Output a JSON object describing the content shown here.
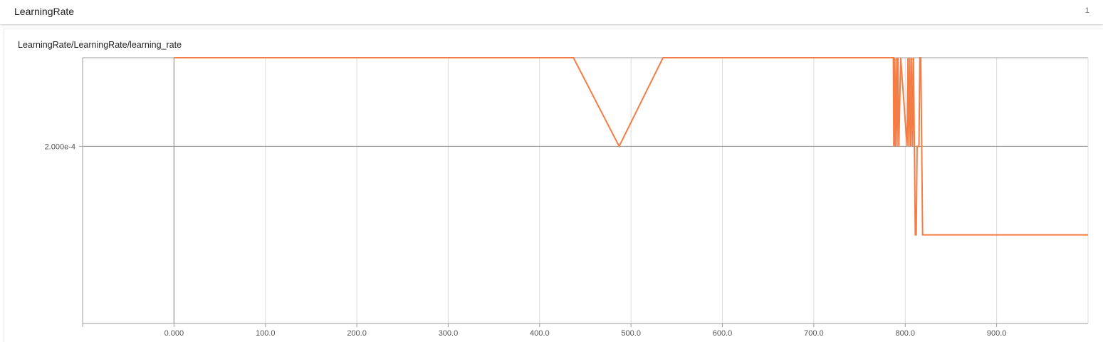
{
  "header": {
    "title": "LearningRate",
    "count": "1"
  },
  "chart_data": {
    "type": "line",
    "title": "LearningRate/LearningRate/learning_rate",
    "xlabel": "",
    "ylabel": "",
    "xlim": [
      -100,
      1000
    ],
    "ylim": [
      0,
      0.0003
    ],
    "grid": true,
    "x_ticks": [
      0,
      100,
      200,
      300,
      400,
      500,
      600,
      700,
      800,
      900
    ],
    "x_tick_labels": [
      "0.000",
      "100.0",
      "200.0",
      "300.0",
      "400.0",
      "500.0",
      "600.0",
      "700.0",
      "800.0",
      "900.0"
    ],
    "y_ticks": [
      0.0002
    ],
    "y_tick_labels": [
      "2.000e-4"
    ],
    "series": [
      {
        "color": "#f47c45",
        "x": [
          0,
          437,
          487,
          535,
          787,
          787.5,
          788,
          789,
          790,
          791,
          792,
          793,
          795,
          802,
          803,
          804,
          805,
          806,
          807,
          808,
          809,
          810,
          811,
          812,
          813,
          815,
          816,
          817,
          819,
          1000
        ],
        "y": [
          0.0003,
          0.0003,
          0.0002,
          0.0003,
          0.0003,
          0.0002,
          0.0003,
          0.0002,
          0.0003,
          0.0002,
          0.0003,
          0.0002,
          0.0003,
          0.0002,
          0.0003,
          0.0002,
          0.0003,
          0.0002,
          0.0003,
          0.0002,
          0.0003,
          0.0002,
          0.0001,
          0.0001,
          0.0002,
          0.0002,
          0.0003,
          0.0003,
          0.0001,
          0.0001
        ]
      }
    ]
  }
}
